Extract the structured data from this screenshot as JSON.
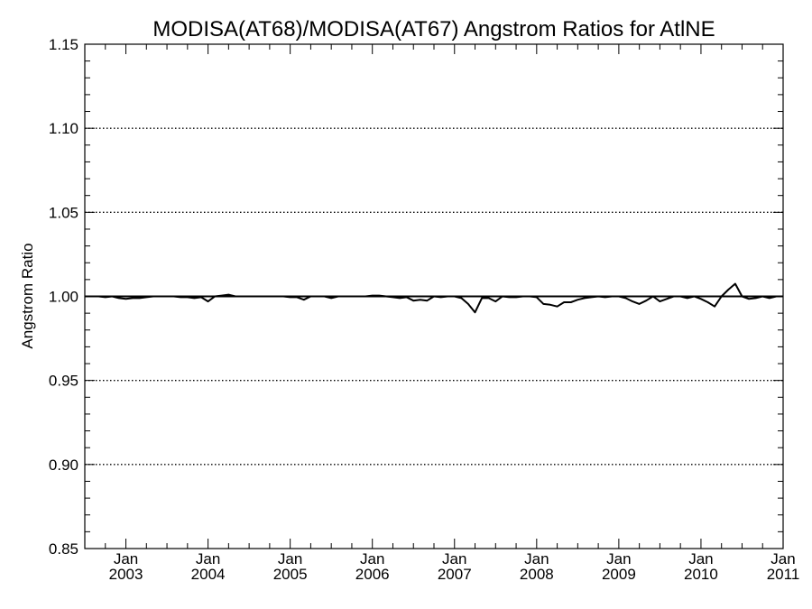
{
  "chart_data": {
    "type": "line",
    "title": "MODISA(AT68)/MODISA(AT67)  Angstrom Ratios for AtlNE",
    "xlabel": "",
    "ylabel": "Angstrom Ratio",
    "ylim": [
      0.85,
      1.15
    ],
    "yticks": [
      "0.85",
      "0.90",
      "0.95",
      "1.00",
      "1.05",
      "1.10",
      "1.15"
    ],
    "xlim": [
      "2002-07",
      "2011-01"
    ],
    "xticks": [
      {
        "month": "Jan",
        "year": "2003",
        "date": "2003-01"
      },
      {
        "month": "Jan",
        "year": "2004",
        "date": "2004-01"
      },
      {
        "month": "Jan",
        "year": "2005",
        "date": "2005-01"
      },
      {
        "month": "Jan",
        "year": "2006",
        "date": "2006-01"
      },
      {
        "month": "Jan",
        "year": "2007",
        "date": "2007-01"
      },
      {
        "month": "Jan",
        "year": "2008",
        "date": "2008-01"
      },
      {
        "month": "Jan",
        "year": "2009",
        "date": "2009-01"
      },
      {
        "month": "Jan",
        "year": "2010",
        "date": "2010-01"
      },
      {
        "month": "Jan",
        "year": "2011",
        "date": "2011-01"
      }
    ],
    "grid": "horizontal dotted",
    "reference_line": 1.0,
    "series": [
      {
        "x": [
          "2002-07",
          "2002-08",
          "2002-09",
          "2002-10",
          "2002-11",
          "2002-12",
          "2003-01",
          "2003-02",
          "2003-03",
          "2003-04",
          "2003-05",
          "2003-06",
          "2003-07",
          "2003-08",
          "2003-09",
          "2003-10",
          "2003-11",
          "2003-12",
          "2004-01",
          "2004-02",
          "2004-03",
          "2004-04",
          "2004-05",
          "2004-06",
          "2004-07",
          "2004-08",
          "2004-09",
          "2004-10",
          "2004-11",
          "2004-12",
          "2005-01",
          "2005-02",
          "2005-03",
          "2005-04",
          "2005-05",
          "2005-06",
          "2005-07",
          "2005-08",
          "2005-09",
          "2005-10",
          "2005-11",
          "2005-12",
          "2006-01",
          "2006-02",
          "2006-03",
          "2006-04",
          "2006-05",
          "2006-06",
          "2006-07",
          "2006-08",
          "2006-09",
          "2006-10",
          "2006-11",
          "2006-12",
          "2007-01",
          "2007-02",
          "2007-03",
          "2007-04",
          "2007-05",
          "2007-06",
          "2007-07",
          "2007-08",
          "2007-09",
          "2007-10",
          "2007-11",
          "2007-12",
          "2008-01",
          "2008-02",
          "2008-03",
          "2008-04",
          "2008-05",
          "2008-06",
          "2008-07",
          "2008-08",
          "2008-09",
          "2008-10",
          "2008-11",
          "2008-12",
          "2009-01",
          "2009-02",
          "2009-03",
          "2009-04",
          "2009-05",
          "2009-06",
          "2009-07",
          "2009-08",
          "2009-09",
          "2009-10",
          "2009-11",
          "2009-12",
          "2010-01",
          "2010-02",
          "2010-03",
          "2010-04",
          "2010-05",
          "2010-06",
          "2010-07",
          "2010-08",
          "2010-09",
          "2010-10",
          "2010-11",
          "2010-12",
          "2011-01"
        ],
        "values": [
          1.0,
          1.0,
          1.0,
          0.9995,
          1.0,
          0.999,
          0.9985,
          0.999,
          0.999,
          0.9995,
          1.0,
          1.0,
          1.0,
          1.0,
          0.9995,
          0.9995,
          0.999,
          0.9995,
          0.997,
          1.0,
          1.0005,
          1.001,
          1.0,
          1.0,
          1.0,
          1.0,
          1.0,
          1.0,
          1.0,
          1.0,
          0.9995,
          0.9995,
          0.998,
          1.0,
          1.0,
          1.0,
          0.999,
          1.0,
          1.0,
          1.0,
          1.0,
          1.0,
          1.0005,
          1.0005,
          1.0,
          0.9995,
          0.999,
          0.9995,
          0.9975,
          0.998,
          0.9975,
          1.0,
          0.9995,
          1.0,
          1.0,
          0.999,
          0.9955,
          0.9905,
          0.999,
          0.999,
          0.997,
          1.0,
          0.9995,
          0.9995,
          1.0,
          1.0,
          0.9995,
          0.9955,
          0.995,
          0.994,
          0.9965,
          0.9965,
          0.998,
          0.999,
          0.9995,
          1.0,
          0.9995,
          1.0,
          1.0,
          0.999,
          0.997,
          0.9955,
          0.9975,
          1.0,
          0.997,
          0.9985,
          1.0,
          1.0,
          0.999,
          1.0,
          0.9985,
          0.9965,
          0.994,
          1.0,
          1.004,
          1.0075,
          1.0,
          0.9985,
          0.999,
          1.0,
          0.999,
          1.0,
          1.0
        ]
      }
    ]
  }
}
